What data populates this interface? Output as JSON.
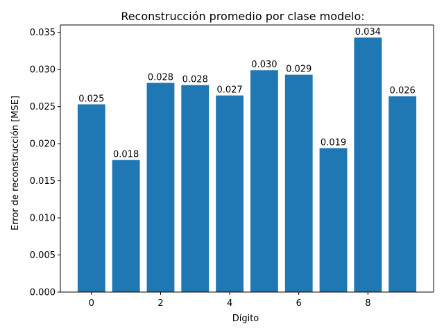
{
  "chart_data": {
    "type": "bar",
    "title": "Reconstrucción promedio por clase modelo:",
    "xlabel": "Dígito",
    "ylabel": "Error de reconstrucción [MSE]",
    "categories": [
      0,
      1,
      2,
      3,
      4,
      5,
      6,
      7,
      8,
      9
    ],
    "values": [
      0.0253,
      0.0178,
      0.0282,
      0.0279,
      0.0265,
      0.0299,
      0.0293,
      0.0194,
      0.0343,
      0.0264
    ],
    "value_labels": [
      "0.025",
      "0.018",
      "0.028",
      "0.028",
      "0.027",
      "0.030",
      "0.029",
      "0.019",
      "0.034",
      "0.026"
    ],
    "xticks": [
      "0",
      "2",
      "4",
      "6",
      "8"
    ],
    "xtick_values": [
      0,
      2,
      4,
      6,
      8
    ],
    "yticks": [
      "0.000",
      "0.005",
      "0.010",
      "0.015",
      "0.020",
      "0.025",
      "0.030",
      "0.035"
    ],
    "ytick_values": [
      0,
      0.005,
      0.01,
      0.015,
      0.02,
      0.025,
      0.03,
      0.035
    ],
    "xlim": [
      -0.9,
      9.9
    ],
    "ylim": [
      0,
      0.036
    ],
    "grid": false,
    "bar_color": "#1f77b4"
  }
}
